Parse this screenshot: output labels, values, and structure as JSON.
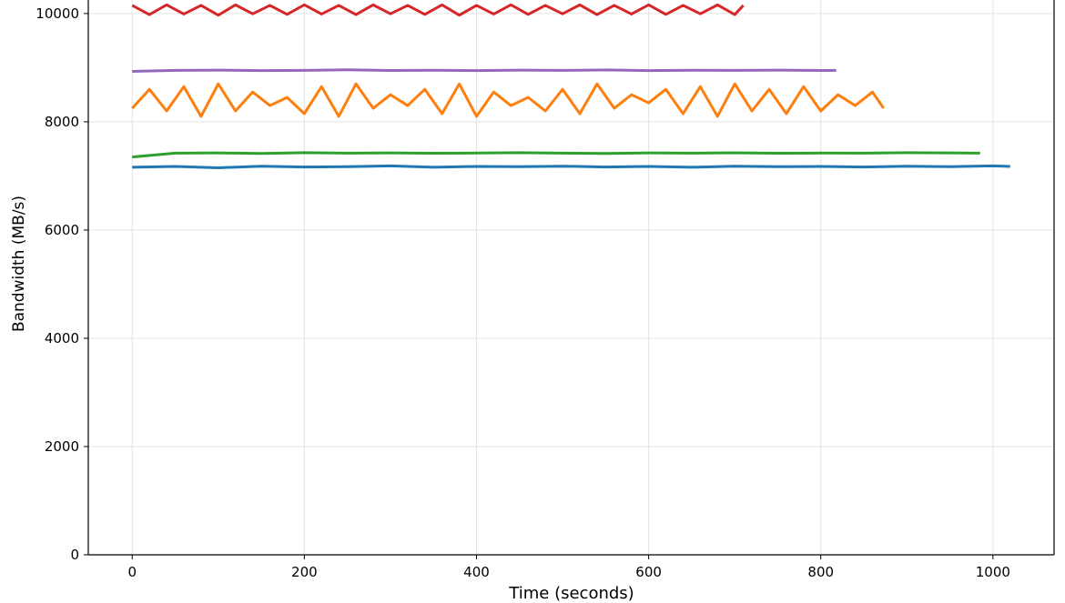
{
  "chart_data": {
    "type": "line",
    "xlabel": "Time (seconds)",
    "ylabel": "Bandwidth (MB/s)",
    "xlim": [
      -51,
      1071
    ],
    "ylim": [
      0,
      10250
    ],
    "xticks": [
      0,
      200,
      400,
      600,
      800,
      1000
    ],
    "yticks": [
      0,
      2000,
      4000,
      6000,
      8000,
      10000
    ],
    "grid": true,
    "series": [
      {
        "color": "#1f77b4",
        "x": [
          0,
          50,
          100,
          150,
          200,
          250,
          300,
          350,
          400,
          450,
          500,
          550,
          600,
          650,
          700,
          750,
          800,
          850,
          900,
          950,
          1000,
          1020
        ],
        "values": [
          7160,
          7175,
          7150,
          7180,
          7165,
          7170,
          7185,
          7160,
          7175,
          7170,
          7180,
          7165,
          7175,
          7160,
          7180,
          7170,
          7175,
          7165,
          7180,
          7170,
          7185,
          7175
        ]
      },
      {
        "color": "#2ca02c",
        "x": [
          0,
          50,
          100,
          150,
          200,
          250,
          300,
          350,
          400,
          450,
          500,
          550,
          600,
          650,
          700,
          750,
          800,
          850,
          900,
          950,
          985
        ],
        "values": [
          7350,
          7420,
          7425,
          7415,
          7430,
          7420,
          7425,
          7418,
          7422,
          7430,
          7420,
          7415,
          7425,
          7420,
          7428,
          7418,
          7422,
          7420,
          7430,
          7425,
          7420
        ]
      },
      {
        "color": "#ff7f0e",
        "x": [
          0,
          20,
          40,
          60,
          80,
          100,
          120,
          140,
          160,
          180,
          200,
          220,
          240,
          260,
          280,
          300,
          320,
          340,
          360,
          380,
          400,
          420,
          440,
          460,
          480,
          500,
          520,
          540,
          560,
          580,
          600,
          620,
          640,
          660,
          680,
          700,
          720,
          740,
          760,
          780,
          800,
          820,
          840,
          860,
          873
        ],
        "values": [
          8250,
          8600,
          8200,
          8650,
          8100,
          8700,
          8200,
          8550,
          8300,
          8450,
          8150,
          8650,
          8100,
          8700,
          8250,
          8500,
          8300,
          8600,
          8150,
          8700,
          8100,
          8550,
          8300,
          8450,
          8200,
          8600,
          8150,
          8700,
          8250,
          8500,
          8350,
          8600,
          8150,
          8650,
          8100,
          8700,
          8200,
          8600,
          8150,
          8650,
          8200,
          8500,
          8300,
          8550,
          8250
        ]
      },
      {
        "color": "#9467bd",
        "x": [
          0,
          50,
          100,
          150,
          200,
          250,
          300,
          350,
          400,
          450,
          500,
          550,
          600,
          650,
          700,
          750,
          800,
          818
        ],
        "values": [
          8930,
          8950,
          8955,
          8945,
          8950,
          8960,
          8948,
          8952,
          8945,
          8955,
          8950,
          8958,
          8945,
          8952,
          8950,
          8955,
          8948,
          8950
        ]
      },
      {
        "color": "#d62728",
        "x": [
          0,
          20,
          40,
          60,
          80,
          100,
          120,
          140,
          160,
          180,
          200,
          220,
          240,
          260,
          280,
          300,
          320,
          340,
          360,
          380,
          400,
          420,
          440,
          460,
          480,
          500,
          520,
          540,
          560,
          580,
          600,
          620,
          640,
          660,
          680,
          700,
          710
        ],
        "values": [
          10150,
          9980,
          10160,
          9990,
          10150,
          9970,
          10160,
          9995,
          10150,
          9985,
          10160,
          9990,
          10150,
          9980,
          10160,
          9995,
          10150,
          9985,
          10160,
          9970,
          10150,
          9990,
          10160,
          9985,
          10150,
          9995,
          10160,
          9980,
          10150,
          9990,
          10160,
          9985,
          10150,
          9995,
          10160,
          9980,
          10150
        ]
      }
    ]
  }
}
